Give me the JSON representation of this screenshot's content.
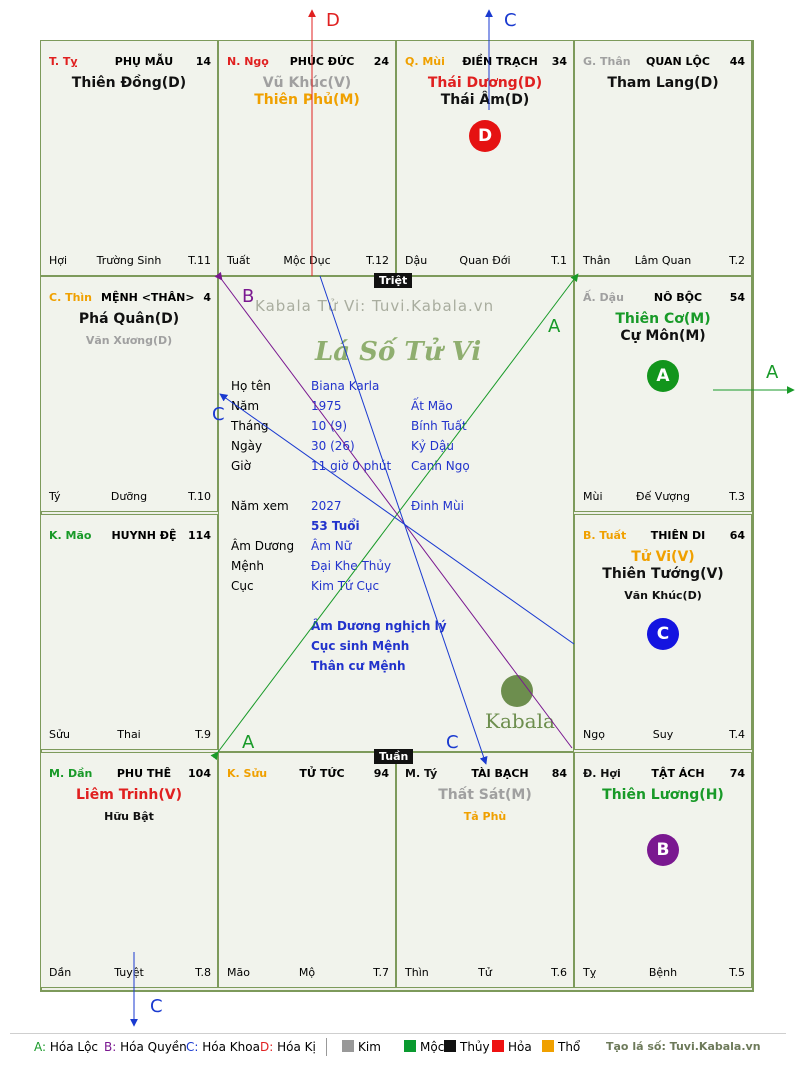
{
  "cells": [
    {
      "id": "ty",
      "name": "T. Tỵ",
      "name_color": "#e02020",
      "title": "PHỤ MẪU",
      "age": "14",
      "stars": [
        {
          "text": "Thiên Đồng(D)",
          "color": "#111"
        }
      ],
      "minor": [],
      "bl": "Hợi",
      "bm": "Trường Sinh",
      "br": "T.11"
    },
    {
      "id": "ngo",
      "name": "N. Ngọ",
      "name_color": "#e02020",
      "title": "PHÚC ĐỨC",
      "age": "24",
      "stars": [
        {
          "text": "Vũ Khúc(V)",
          "color": "#a0a0a0"
        },
        {
          "text": "Thiên Phủ(M)",
          "color": "#f0a000"
        }
      ],
      "minor": [],
      "bl": "Tuất",
      "bm": "Mộc Dục",
      "br": "T.12"
    },
    {
      "id": "mui",
      "name": "Q. Mùi",
      "name_color": "#f0a000",
      "title": "ĐIỀN TRẠCH",
      "age": "34",
      "stars": [
        {
          "text": "Thái Dương(D)",
          "color": "#e02020"
        },
        {
          "text": "Thái Âm(D)",
          "color": "#111"
        }
      ],
      "minor": [],
      "bl": "Dậu",
      "bm": "Quan Đới",
      "br": "T.1"
    },
    {
      "id": "than",
      "name": "G. Thân",
      "name_color": "#a0a0a0",
      "title": "QUAN LỘC",
      "age": "44",
      "stars": [
        {
          "text": "Tham Lang(D)",
          "color": "#111"
        }
      ],
      "minor": [],
      "bl": "Thân",
      "bm": "Lâm Quan",
      "br": "T.2"
    },
    {
      "id": "thin",
      "name": "C. Thìn",
      "name_color": "#f0a000",
      "title": "MỆNH <THÂN>",
      "age": "4",
      "stars": [
        {
          "text": "Phá Quân(D)",
          "color": "#111"
        }
      ],
      "minor": [
        {
          "text": "Văn Xương(D)",
          "color": "#a0a0a0"
        }
      ],
      "bl": "Tý",
      "bm": "Dưỡng",
      "br": "T.10"
    },
    {
      "id": "dau",
      "name": "Ấ. Dậu",
      "name_color": "#a0a0a0",
      "title": "NÔ BỘC",
      "age": "54",
      "stars": [
        {
          "text": "Thiên Cơ(M)",
          "color": "#189a28"
        },
        {
          "text": "Cự Môn(M)",
          "color": "#111"
        }
      ],
      "minor": [],
      "bl": "Mùi",
      "bm": "Đế Vượng",
      "br": "T.3"
    },
    {
      "id": "mao",
      "name": "K. Mão",
      "name_color": "#189a28",
      "title": "HUYNH ĐỆ",
      "age": "114",
      "stars": [],
      "minor": [],
      "bl": "Sửu",
      "bm": "Thai",
      "br": "T.9"
    },
    {
      "id": "tuat",
      "name": "B. Tuất",
      "name_color": "#f0a000",
      "title": "THIÊN DI",
      "age": "64",
      "stars": [
        {
          "text": "Tử Vi(V)",
          "color": "#f0a000"
        },
        {
          "text": "Thiên Tướng(V)",
          "color": "#111"
        }
      ],
      "minor": [
        {
          "text": "Văn Khúc(D)",
          "color": "#111"
        }
      ],
      "bl": "Ngọ",
      "bm": "Suy",
      "br": "T.4"
    },
    {
      "id": "dan",
      "name": "M. Dần",
      "name_color": "#189a28",
      "title": "PHU THÊ",
      "age": "104",
      "stars": [
        {
          "text": "Liêm Trinh(V)",
          "color": "#e02020"
        }
      ],
      "minor": [
        {
          "text": "Hữu Bật",
          "color": "#111"
        }
      ],
      "bl": "Dần",
      "bm": "Tuyệt",
      "br": "T.8"
    },
    {
      "id": "suu",
      "name": "K. Sửu",
      "name_color": "#f0a000",
      "title": "TỬ TỨC",
      "age": "94",
      "stars": [],
      "minor": [],
      "bl": "Mão",
      "bm": "Mộ",
      "br": "T.7"
    },
    {
      "id": "ty2",
      "name": "M. Tý",
      "name_color": "#111",
      "title": "TÀI BẠCH",
      "age": "84",
      "stars": [
        {
          "text": "Thất Sát(M)",
          "color": "#a0a0a0"
        }
      ],
      "minor": [
        {
          "text": "Tả Phù",
          "color": "#f0a000"
        }
      ],
      "bl": "Thìn",
      "bm": "Tử",
      "br": "T.6"
    },
    {
      "id": "hoi",
      "name": "Đ. Hợi",
      "name_color": "#111",
      "title": "TẬT ÁCH",
      "age": "74",
      "stars": [
        {
          "text": "Thiên Lương(H)",
          "color": "#189a28"
        }
      ],
      "minor": [],
      "bl": "Tỵ",
      "bm": "Bệnh",
      "br": "T.5"
    }
  ],
  "markers": [
    {
      "cell": "mui",
      "letter": "D",
      "color": "#e51212"
    },
    {
      "cell": "dau",
      "letter": "A",
      "color": "#12951c"
    },
    {
      "cell": "tuat",
      "letter": "C",
      "color": "#1414e0"
    },
    {
      "cell": "hoi",
      "letter": "B",
      "color": "#7a1890"
    }
  ],
  "center": {
    "triet": "Triệt",
    "tuan": "Tuần",
    "site": "Kabala Tử Vi: Tuvi.Kabala.vn",
    "logo_title": "Lá Số Tử Vi",
    "brand": "Kabala",
    "info": [
      {
        "label": "Họ tên",
        "v1": "Biana Karla",
        "v2": ""
      },
      {
        "label": "Năm",
        "v1": "1975",
        "v2": "Ất Mão"
      },
      {
        "label": "Tháng",
        "v1": "10  (9)",
        "v2": "Bính Tuất"
      },
      {
        "label": "Ngày",
        "v1": "30  (26)",
        "v2": "Kỷ Dậu"
      },
      {
        "label": "Giờ",
        "v1": "11 giờ 0 phút",
        "v2": "Canh Ngọ"
      }
    ],
    "nam_xem_label": "Năm xem",
    "nam_xem": "2027",
    "nam_xem_can": "Đinh Mùi",
    "tuoi": "53 Tuổi",
    "info2": [
      {
        "label": "Âm Dương",
        "v1": "Âm Nữ"
      },
      {
        "label": "Mệnh",
        "v1": "Đại Khe Thủy"
      },
      {
        "label": "Cục",
        "v1": "Kim Tứ Cục"
      }
    ],
    "notes": [
      "Âm Dương nghịch lý",
      "Cục sinh Mệnh",
      "Thân cư Mệnh"
    ]
  },
  "arrow_letters": [
    {
      "text": "D",
      "color": "#e02020"
    },
    {
      "text": "C",
      "color": "#1a3ad0"
    },
    {
      "text": "A",
      "color": "#189a28"
    },
    {
      "text": "A",
      "color": "#189a28"
    },
    {
      "text": "B",
      "color": "#7a1890"
    },
    {
      "text": "C",
      "color": "#1a3ad0"
    },
    {
      "text": "A",
      "color": "#189a28"
    },
    {
      "text": "C",
      "color": "#1a3ad0"
    },
    {
      "text": "C",
      "color": "#1a3ad0"
    }
  ],
  "legend": {
    "hoa": [
      {
        "key": "A:",
        "label": "Hóa Lộc",
        "color": "#189a28"
      },
      {
        "key": "B:",
        "label": "Hóa Quyền",
        "color": "#7a1890"
      },
      {
        "key": "C:",
        "label": "Hóa Khoa",
        "color": "#1a3ad0"
      },
      {
        "key": "D:",
        "label": "Hóa Kị",
        "color": "#e02020"
      }
    ],
    "elements": [
      {
        "label": "Kim",
        "color": "#999999"
      },
      {
        "label": "Mộc",
        "color": "#0a9a30"
      },
      {
        "label": "Thủy",
        "color": "#111111"
      },
      {
        "label": "Hỏa",
        "color": "#ee1111"
      },
      {
        "label": "Thổ",
        "color": "#f0a000"
      }
    ],
    "credit": "Tạo lá số: Tuvi.Kabala.vn"
  }
}
